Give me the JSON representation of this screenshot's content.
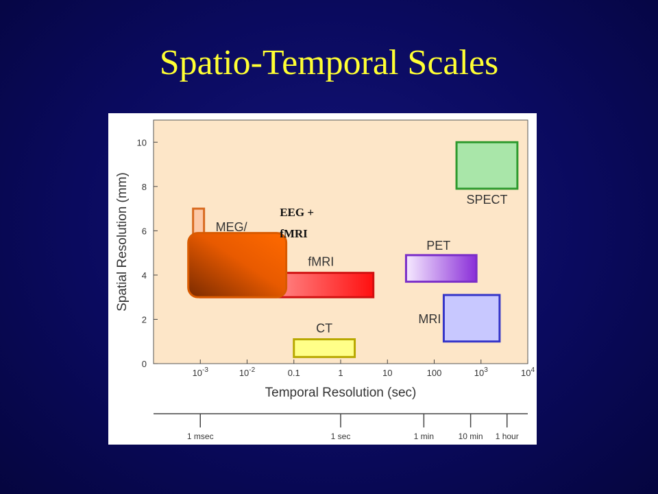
{
  "slide": {
    "title": "Spatio-Temporal Scales"
  },
  "chart_data": {
    "type": "range-box",
    "xlabel": "Temporal Resolution (sec)",
    "ylabel": "Spatial Resolution (mm)",
    "x_scale": "log",
    "xlim": [
      0.0001,
      10000
    ],
    "ylim": [
      0,
      11
    ],
    "x_ticks": [
      {
        "value": 0.001,
        "mant": "10",
        "exp": "-3"
      },
      {
        "value": 0.01,
        "mant": "10",
        "exp": "-2"
      },
      {
        "value": 0.1,
        "mant": "0.1",
        "exp": ""
      },
      {
        "value": 1,
        "mant": "1",
        "exp": ""
      },
      {
        "value": 10,
        "mant": "10",
        "exp": ""
      },
      {
        "value": 100,
        "mant": "100",
        "exp": ""
      },
      {
        "value": 1000,
        "mant": "10",
        "exp": "3"
      },
      {
        "value": 10000,
        "mant": "10",
        "exp": "4"
      }
    ],
    "y_ticks": [
      0,
      2,
      4,
      6,
      8,
      10
    ],
    "grid": false,
    "background": "#fde6c8",
    "regions": [
      {
        "label": "SPECT",
        "x": [
          300,
          6000
        ],
        "y": [
          7.9,
          10
        ],
        "color": "#a9e6a9",
        "stroke": "#2e9a2e",
        "fill": "solid"
      },
      {
        "label": "PET",
        "x": [
          25,
          800
        ],
        "y": [
          3.7,
          4.9
        ],
        "color": "#b07ae6",
        "stroke": "#7a2ec8",
        "fill": "gradient"
      },
      {
        "label": "MRI",
        "x": [
          160,
          2500
        ],
        "y": [
          1.0,
          3.1
        ],
        "color": "#c8c8ff",
        "stroke": "#3434c8",
        "fill": "solid"
      },
      {
        "label": "fMRI",
        "x": [
          0.001,
          5
        ],
        "y": [
          3.0,
          4.1
        ],
        "color": "#ff2020",
        "stroke": "#d01010",
        "fill": "gradient"
      },
      {
        "label": "CT",
        "x": [
          0.1,
          2
        ],
        "y": [
          0.3,
          1.1
        ],
        "color": "#ffff88",
        "stroke": "#b8a800",
        "fill": "solid"
      },
      {
        "label": "MEG/",
        "x": [
          0.0007,
          0.0012
        ],
        "y": [
          4.0,
          7.0
        ],
        "color": "#fcc9a8",
        "stroke": "#d86a20",
        "fill": "solid"
      },
      {
        "label": "EEG +\nfMRI",
        "x": [
          0.0007,
          0.06
        ],
        "y": [
          3.0,
          5.9
        ],
        "color": "#ff6a00",
        "stroke": "#d85a00",
        "fill": "gradient"
      }
    ],
    "overlay_labels": [
      "EEG +",
      "fMRI"
    ],
    "time_axis": {
      "ticks": [
        {
          "label": "1 msec",
          "seconds": 0.001
        },
        {
          "label": "1 sec",
          "seconds": 1
        },
        {
          "label": "1 min",
          "seconds": 60
        },
        {
          "label": "10 min",
          "seconds": 600
        },
        {
          "label": "1 hour",
          "seconds": 3600
        }
      ]
    }
  }
}
